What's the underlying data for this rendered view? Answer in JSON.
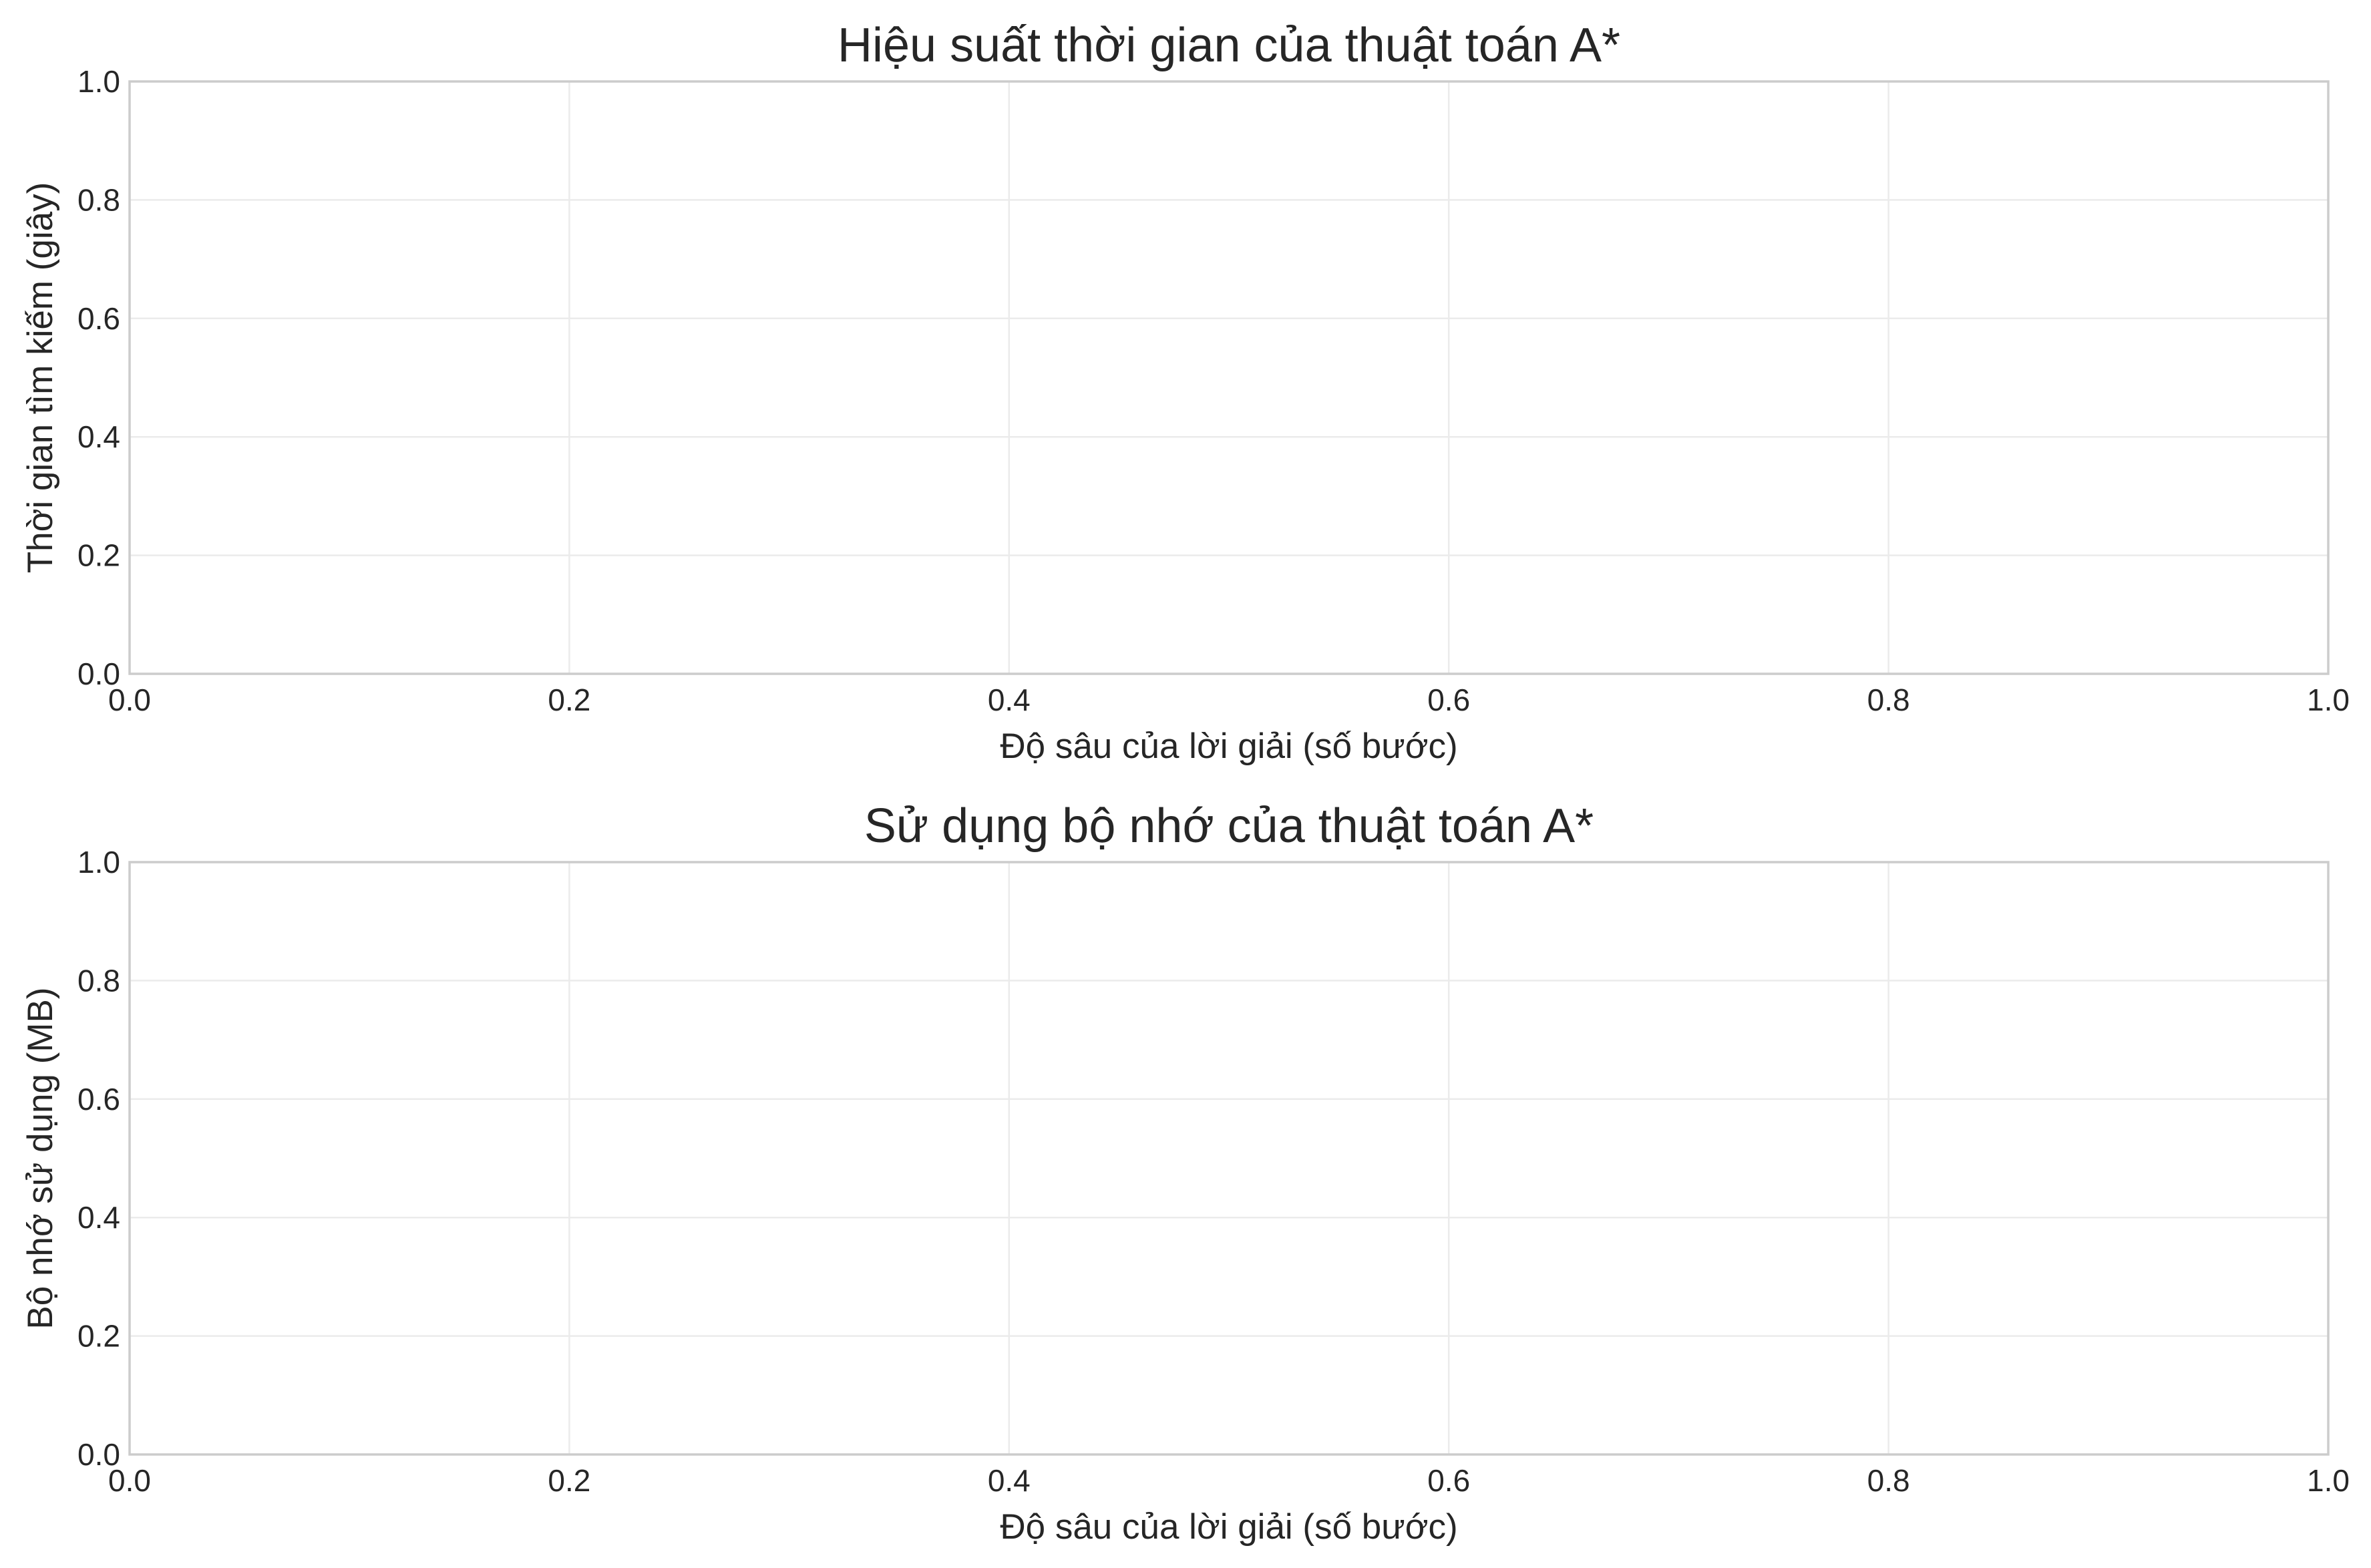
{
  "chart_data": [
    {
      "type": "line",
      "title": "Hiệu suất thời gian của thuật toán A*",
      "xlabel": "Độ sâu của lời giải (số bước)",
      "ylabel": "Thời gian tìm kiếm (giây)",
      "xlim": [
        0.0,
        1.0
      ],
      "ylim": [
        0.0,
        1.0
      ],
      "xticks": [
        "0.0",
        "0.2",
        "0.4",
        "0.6",
        "0.8",
        "1.0"
      ],
      "yticks": [
        "0.0",
        "0.2",
        "0.4",
        "0.6",
        "0.8",
        "1.0"
      ],
      "series": [],
      "grid": true
    },
    {
      "type": "line",
      "title": "Sử dụng bộ nhớ của thuật toán A*",
      "xlabel": "Độ sâu của lời giải (số bước)",
      "ylabel": "Bộ nhớ sử dụng (MB)",
      "xlim": [
        0.0,
        1.0
      ],
      "ylim": [
        0.0,
        1.0
      ],
      "xticks": [
        "0.0",
        "0.2",
        "0.4",
        "0.6",
        "0.8",
        "1.0"
      ],
      "yticks": [
        "0.0",
        "0.2",
        "0.4",
        "0.6",
        "0.8",
        "1.0"
      ],
      "series": [],
      "grid": true
    }
  ],
  "colors": {
    "text": "#262626",
    "grid": "#ebebeb",
    "frame": "#cccccc",
    "background": "#ffffff"
  }
}
